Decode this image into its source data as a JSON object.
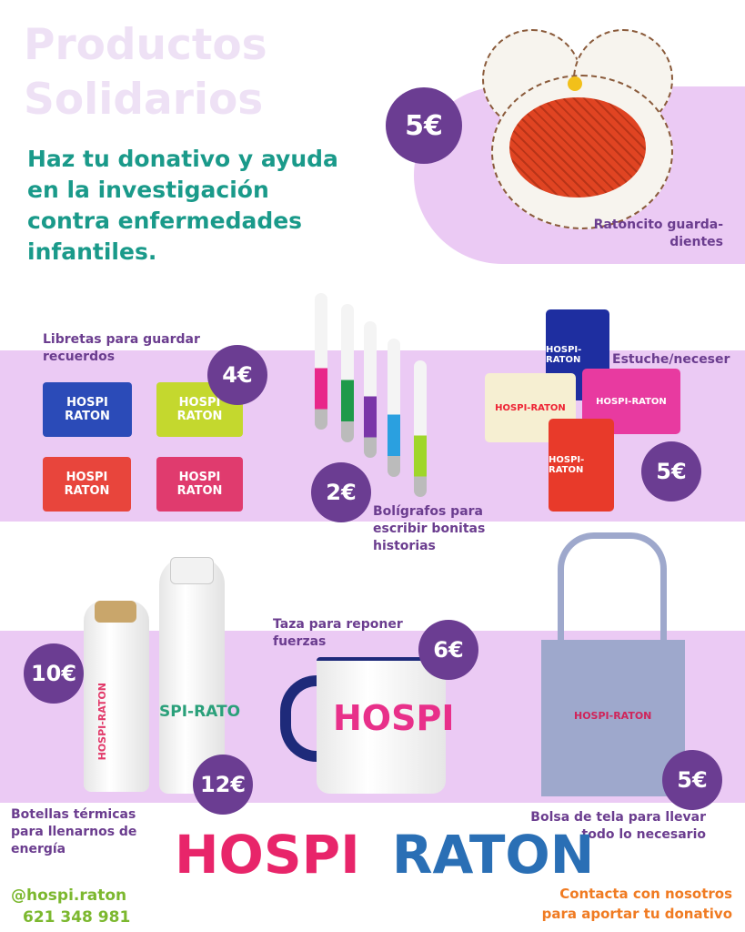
{
  "header": {
    "title_line1": "Productos",
    "title_line2": "Solidarios",
    "subtitle": "Haz tu donativo y ayuda en la investigación contra enfermedades infantiles."
  },
  "colors": {
    "title": "#eee1f5",
    "subtitle": "#1a9a8a",
    "band": "#ebcaf4",
    "price_circle": "#6b3d92",
    "label": "#6b3d8f",
    "social": "#7cb82f",
    "contact": "#f07b22"
  },
  "products": {
    "ratoncito": {
      "label": "Ratoncito guarda-dientes",
      "price": "5€"
    },
    "libretas": {
      "label": "Libretas para guardar recuerdos",
      "price": "4€",
      "print": "HOSPI RATON"
    },
    "boligrafos": {
      "label": "Bolígrafos para escribir bonitas historias",
      "price": "2€"
    },
    "estuche": {
      "label": "Estuche/neceser",
      "price": "5€",
      "print": "HOSPI-RATON"
    },
    "botella_pequena": {
      "price": "10€",
      "print": "HOSPI-RATON"
    },
    "botella_grande": {
      "price": "12€",
      "print": "SPI-RATO"
    },
    "botellas": {
      "label": "Botellas térmicas para llenarnos de energía"
    },
    "taza": {
      "label": "Taza para reponer fuerzas",
      "price": "6€",
      "print": "HOSPI"
    },
    "bolsa": {
      "label": "Bolsa de tela para llevar todo lo necesario",
      "price": "5€",
      "print": "HOSPI-RATON"
    }
  },
  "footer": {
    "logo_text_1": "HOSPI",
    "logo_text_2": "RATON",
    "social": "@hospi.raton",
    "phone": "621 348 981",
    "contact": "Contacta con nosotros para aportar tu donativo"
  }
}
